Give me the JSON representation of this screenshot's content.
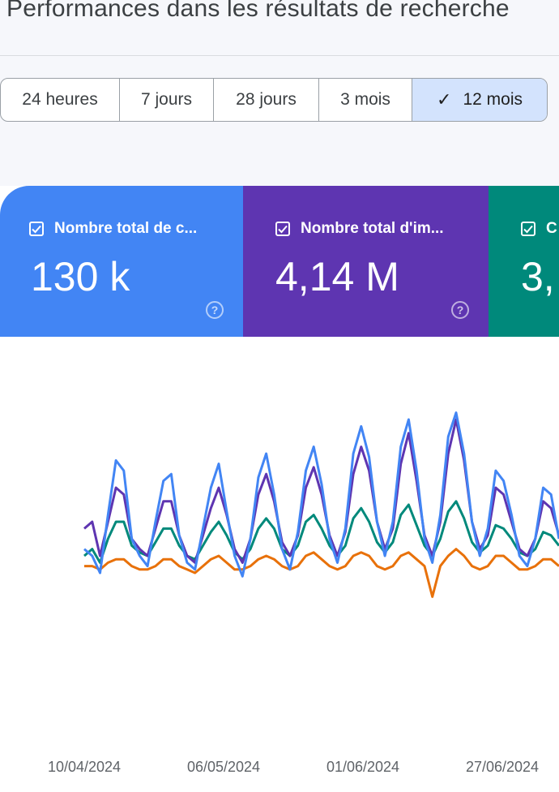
{
  "header": {
    "title": "Performances dans les résultats de recherche"
  },
  "date_range": {
    "options": [
      "24 heures",
      "7 jours",
      "28 jours",
      "3 mois",
      "12 mois"
    ],
    "selected": "12 mois",
    "check_icon": "check-icon"
  },
  "metrics": [
    {
      "label": "Nombre total de c...",
      "value": "130 k",
      "color": "#4285f4",
      "checked": true
    },
    {
      "label": "Nombre total d'im...",
      "value": "4,14 M",
      "color": "#5e35b1",
      "checked": true
    },
    {
      "label": "C",
      "value": "3,",
      "color": "#00897b",
      "checked": true
    }
  ],
  "chart_data": {
    "type": "line",
    "x_tick_labels": [
      "10/04/2024",
      "06/05/2024",
      "01/06/2024",
      "27/06/2024"
    ],
    "series": [
      {
        "color": "#4285f4",
        "values": [
          0.52,
          0.5,
          0.45,
          0.62,
          0.78,
          0.75,
          0.55,
          0.5,
          0.47,
          0.6,
          0.72,
          0.74,
          0.56,
          0.48,
          0.46,
          0.58,
          0.7,
          0.77,
          0.63,
          0.5,
          0.44,
          0.55,
          0.73,
          0.8,
          0.68,
          0.52,
          0.46,
          0.57,
          0.75,
          0.82,
          0.71,
          0.55,
          0.48,
          0.58,
          0.8,
          0.88,
          0.79,
          0.6,
          0.5,
          0.6,
          0.82,
          0.9,
          0.75,
          0.55,
          0.48,
          0.62,
          0.85,
          0.92,
          0.8,
          0.6,
          0.5,
          0.58,
          0.75,
          0.72,
          0.62,
          0.5,
          0.47,
          0.55,
          0.7,
          0.68,
          0.55
        ],
        "color2": ""
      },
      {
        "color": "#5e35b1",
        "values": [
          0.58,
          0.6,
          0.5,
          0.6,
          0.7,
          0.68,
          0.55,
          0.52,
          0.5,
          0.58,
          0.66,
          0.66,
          0.56,
          0.5,
          0.48,
          0.56,
          0.64,
          0.7,
          0.62,
          0.52,
          0.48,
          0.55,
          0.68,
          0.74,
          0.66,
          0.54,
          0.5,
          0.56,
          0.7,
          0.76,
          0.68,
          0.56,
          0.5,
          0.57,
          0.74,
          0.82,
          0.75,
          0.6,
          0.52,
          0.58,
          0.77,
          0.86,
          0.72,
          0.56,
          0.5,
          0.6,
          0.8,
          0.9,
          0.78,
          0.6,
          0.52,
          0.56,
          0.7,
          0.68,
          0.6,
          0.52,
          0.5,
          0.55,
          0.66,
          0.64,
          0.56
        ]
      },
      {
        "color": "#00897b",
        "values": [
          0.5,
          0.52,
          0.48,
          0.55,
          0.6,
          0.6,
          0.53,
          0.51,
          0.5,
          0.54,
          0.58,
          0.58,
          0.53,
          0.5,
          0.49,
          0.53,
          0.57,
          0.6,
          0.56,
          0.51,
          0.49,
          0.52,
          0.58,
          0.61,
          0.58,
          0.52,
          0.5,
          0.53,
          0.6,
          0.62,
          0.58,
          0.53,
          0.5,
          0.53,
          0.61,
          0.64,
          0.6,
          0.54,
          0.51,
          0.54,
          0.62,
          0.65,
          0.59,
          0.53,
          0.5,
          0.55,
          0.63,
          0.66,
          0.61,
          0.54,
          0.51,
          0.53,
          0.59,
          0.58,
          0.55,
          0.51,
          0.5,
          0.52,
          0.57,
          0.56,
          0.53
        ]
      },
      {
        "color": "#e8710a",
        "values": [
          0.47,
          0.47,
          0.46,
          0.48,
          0.49,
          0.49,
          0.47,
          0.46,
          0.46,
          0.47,
          0.49,
          0.49,
          0.47,
          0.46,
          0.45,
          0.47,
          0.49,
          0.5,
          0.48,
          0.46,
          0.46,
          0.47,
          0.49,
          0.5,
          0.49,
          0.47,
          0.46,
          0.47,
          0.5,
          0.51,
          0.49,
          0.47,
          0.46,
          0.47,
          0.5,
          0.51,
          0.5,
          0.47,
          0.46,
          0.47,
          0.5,
          0.51,
          0.49,
          0.47,
          0.38,
          0.47,
          0.5,
          0.52,
          0.5,
          0.47,
          0.46,
          0.47,
          0.5,
          0.5,
          0.48,
          0.46,
          0.46,
          0.47,
          0.49,
          0.49,
          0.47
        ]
      }
    ],
    "ylim": [
      0,
      1
    ],
    "grid": false,
    "legend": "none"
  }
}
